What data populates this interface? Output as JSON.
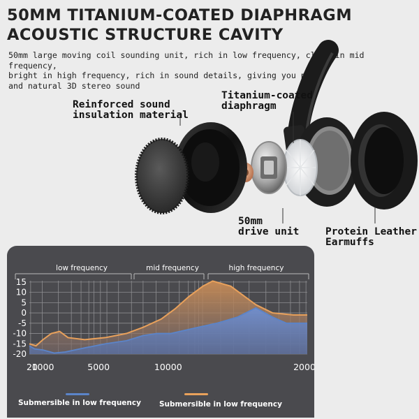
{
  "heading": {
    "line1": "50MM TITANIUM-COATED DIAPHRAGM",
    "line2": "ACOUSTIC STRUCTURE CAVITY"
  },
  "description": {
    "line1": "50mm large moving coil sounding unit, rich in low frequency, clear in mid frequency,",
    "line2": "bright in high frequency, rich in sound details, giving you pure",
    "line3": "and natural 3D stereo sound"
  },
  "callouts": {
    "insulation": [
      "Reinforced sound",
      "insulation material"
    ],
    "diaphragm": [
      "Titanium-coated",
      "diaphragm"
    ],
    "drive": [
      "50mm",
      "drive unit"
    ],
    "earmuffs": [
      "Protein Leather",
      "Earmuffs"
    ]
  },
  "colors": {
    "blue_series": "#5b84c9",
    "orange_series": "#e9a15b",
    "panel": "#4a4a4e"
  },
  "chart_data": {
    "type": "area",
    "bands": [
      "low frequency",
      "mid frequency",
      "high frequency"
    ],
    "x_ticks": [
      20,
      1000,
      5000,
      10000,
      20000
    ],
    "y_ticks": [
      15,
      10,
      5,
      0,
      -5,
      -10,
      -15,
      -20
    ],
    "ylim": [
      -20,
      17
    ],
    "grid": true,
    "series": [
      {
        "name": "Submersible in low frequency",
        "color": "#5b84c9",
        "points": [
          [
            20,
            -16
          ],
          [
            400,
            -17.5
          ],
          [
            1000,
            -18
          ],
          [
            1800,
            -19.5
          ],
          [
            2600,
            -19
          ],
          [
            4000,
            -17
          ],
          [
            5500,
            -15
          ],
          [
            7000,
            -13.5
          ],
          [
            8200,
            -11
          ],
          [
            9200,
            -10
          ],
          [
            10200,
            -10
          ],
          [
            11500,
            -8
          ],
          [
            13500,
            -5
          ],
          [
            15000,
            -2
          ],
          [
            16300,
            2.5
          ],
          [
            17500,
            -2
          ],
          [
            18500,
            -5
          ],
          [
            20000,
            -5
          ]
        ]
      },
      {
        "name": "Submersible in low frequency",
        "color": "#e9a15b",
        "points": [
          [
            20,
            -15
          ],
          [
            500,
            -16
          ],
          [
            1000,
            -13
          ],
          [
            1600,
            -10
          ],
          [
            2200,
            -9
          ],
          [
            2800,
            -12
          ],
          [
            4000,
            -13
          ],
          [
            5500,
            -12
          ],
          [
            7000,
            -10
          ],
          [
            8200,
            -7
          ],
          [
            9500,
            -3
          ],
          [
            10500,
            2
          ],
          [
            11500,
            8
          ],
          [
            12500,
            13
          ],
          [
            13200,
            15.5
          ],
          [
            14500,
            13
          ],
          [
            15500,
            8
          ],
          [
            16300,
            4
          ],
          [
            17500,
            0
          ],
          [
            19000,
            -1
          ],
          [
            20000,
            -1
          ]
        ]
      }
    ]
  }
}
